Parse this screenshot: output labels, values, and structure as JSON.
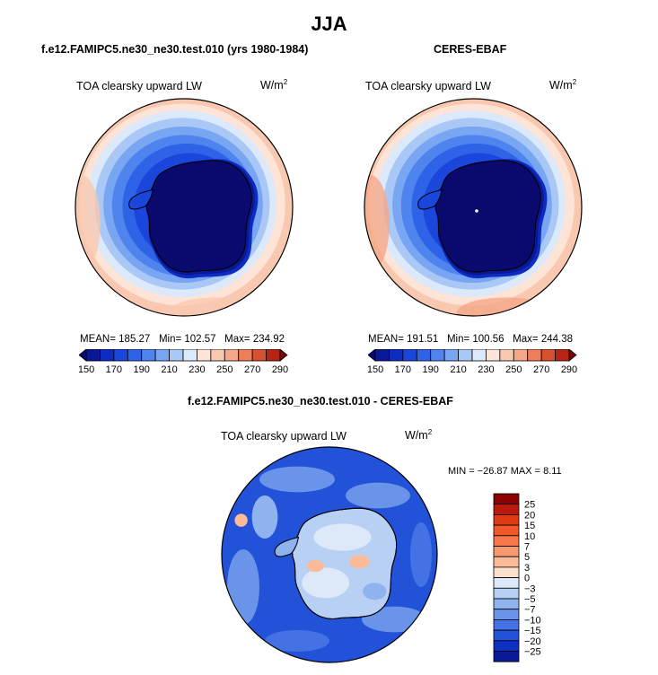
{
  "figure": {
    "title": "JJA"
  },
  "chart_data": [
    {
      "type": "heatmap",
      "projection": "south-polar-stereographic",
      "title": "f.e12.FAMIPC5.ne30_ne30.test.010 (yrs 1980-1984)",
      "variable": "TOA clearsky upward LW",
      "units": "W/m",
      "units_exponent": "2",
      "stats": {
        "mean": "185.27",
        "min": "102.57",
        "max": "234.92"
      },
      "stats_labels": {
        "mean": "MEAN=",
        "min": "Min=",
        "max": "Max="
      },
      "contour_levels": [
        150,
        160,
        170,
        180,
        190,
        200,
        210,
        220,
        230,
        240,
        250,
        260,
        270,
        280,
        290
      ],
      "colorbar_tick_labels": [
        "150",
        "170",
        "190",
        "210",
        "230",
        "250",
        "270",
        "290"
      ],
      "colorbar_colors": [
        "#0a0a6e",
        "#0b1896",
        "#0d2bc0",
        "#1a46dc",
        "#2e63e8",
        "#4f84ee",
        "#78a6f2",
        "#a9c8f6",
        "#dbe9fb",
        "#fde4d6",
        "#f9c8b0",
        "#f5a888",
        "#ec7e5a",
        "#d8502f",
        "#b82414",
        "#7a0606"
      ]
    },
    {
      "type": "heatmap",
      "projection": "south-polar-stereographic",
      "title": "CERES-EBAF",
      "variable": "TOA clearsky upward LW",
      "units": "W/m",
      "units_exponent": "2",
      "stats": {
        "mean": "191.51",
        "min": "100.56",
        "max": "244.38"
      },
      "stats_labels": {
        "mean": "MEAN=",
        "min": "Min=",
        "max": "Max="
      },
      "contour_levels": [
        150,
        160,
        170,
        180,
        190,
        200,
        210,
        220,
        230,
        240,
        250,
        260,
        270,
        280,
        290
      ],
      "colorbar_tick_labels": [
        "150",
        "170",
        "190",
        "210",
        "230",
        "250",
        "270",
        "290"
      ],
      "colorbar_colors": [
        "#0a0a6e",
        "#0b1896",
        "#0d2bc0",
        "#1a46dc",
        "#2e63e8",
        "#4f84ee",
        "#78a6f2",
        "#a9c8f6",
        "#dbe9fb",
        "#fde4d6",
        "#f9c8b0",
        "#f5a888",
        "#ec7e5a",
        "#d8502f",
        "#b82414",
        "#7a0606"
      ]
    },
    {
      "type": "heatmap",
      "projection": "south-polar-stereographic",
      "title": "f.e12.FAMIPC5.ne30_ne30.test.010 - CERES-EBAF",
      "variable": "TOA clearsky upward LW",
      "units": "W/m",
      "units_exponent": "2",
      "stats_text": "MIN = −26.87 MAX =   8.11",
      "colorbar_tick_labels": [
        "25",
        "20",
        "15",
        "10",
        "7",
        "5",
        "3",
        "0",
        "−3",
        "−5",
        "−7",
        "−10",
        "−15",
        "−20",
        "−25"
      ],
      "colorbar_colors": [
        "#8b0000",
        "#bb1a0a",
        "#de3a14",
        "#f0582a",
        "#f5794a",
        "#f89a70",
        "#fbbb98",
        "#fde0cc",
        "#dde9f8",
        "#b7d0f4",
        "#8fb3ef",
        "#6a93ea",
        "#4472e4",
        "#2252d8",
        "#0e31c4",
        "#0a1a96"
      ]
    }
  ]
}
